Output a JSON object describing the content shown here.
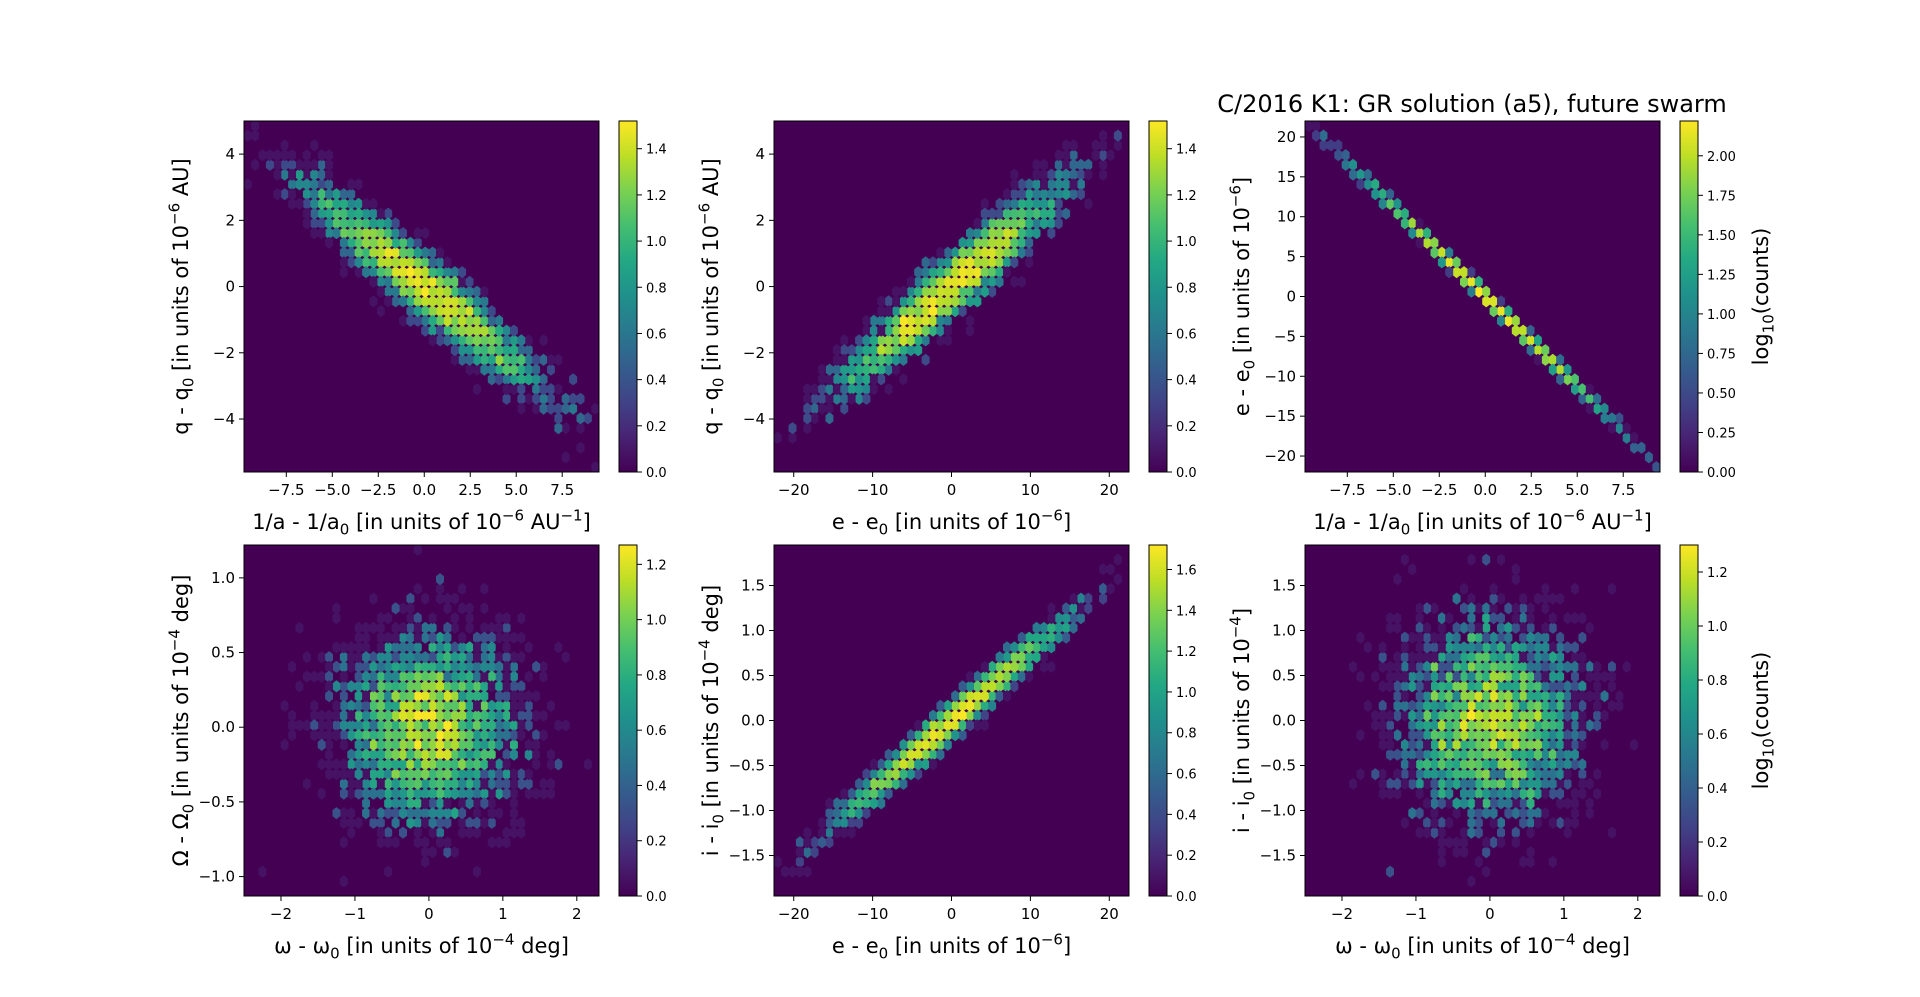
{
  "title": "C/2016 K1: GR solution (a5),  future swarm",
  "chart_data": [
    {
      "type": "heatmap",
      "xlabel": "1/a - 1/a$_0$ [in units of 10$^{-6}$ AU$^{-1}$]",
      "ylabel": "q - q$_0$ [in units of 10$^{-6}$ AU]",
      "xlim": [
        -9.8,
        9.5
      ],
      "ylim": [
        -5.6,
        5.0
      ],
      "xticks": [
        -7.5,
        -5.0,
        -2.5,
        0.0,
        2.5,
        5.0,
        7.5
      ],
      "xtick_labels": [
        "−7.5",
        "−5.0",
        "−2.5",
        "0.0",
        "2.5",
        "5.0",
        "7.5"
      ],
      "yticks": [
        -4,
        -2,
        0,
        2,
        4
      ],
      "ytick_labels": [
        "−4",
        "−2",
        "0",
        "2",
        "4"
      ],
      "colorbar": {
        "vmin": 0,
        "vmax": 1.52,
        "ticks": [
          0.0,
          0.2,
          0.4,
          0.6,
          0.8,
          1.0,
          1.2,
          1.4
        ],
        "tick_labels": [
          "0.0",
          "0.2",
          "0.4",
          "0.6",
          "0.8",
          "1.0",
          "1.2",
          "1.4"
        ],
        "label": ""
      },
      "distribution": {
        "cx": 0.0,
        "cy": 0.0,
        "sx": 3.2,
        "sy": 1.55,
        "rho": -0.95,
        "n": 3000
      }
    },
    {
      "type": "heatmap",
      "xlabel": "e - e$_0$ [in units of 10$^{-6}$]",
      "ylabel": "q - q$_0$ [in units of 10$^{-6}$ AU]",
      "xlim": [
        -22.5,
        22.5
      ],
      "ylim": [
        -5.6,
        5.0
      ],
      "xticks": [
        -20,
        -10,
        0,
        10,
        20
      ],
      "xtick_labels": [
        "−20",
        "−10",
        "0",
        "10",
        "20"
      ],
      "yticks": [
        -4,
        -2,
        0,
        2,
        4
      ],
      "ytick_labels": [
        "−4",
        "−2",
        "0",
        "2",
        "4"
      ],
      "colorbar": {
        "vmin": 0,
        "vmax": 1.52,
        "ticks": [
          0.0,
          0.2,
          0.4,
          0.6,
          0.8,
          1.0,
          1.2,
          1.4
        ],
        "tick_labels": [
          "0.0",
          "0.2",
          "0.4",
          "0.6",
          "0.8",
          "1.0",
          "1.2",
          "1.4"
        ],
        "label": ""
      },
      "distribution": {
        "cx": 0.0,
        "cy": 0.0,
        "sx": 7.0,
        "sy": 1.55,
        "rho": 0.95,
        "n": 3000
      }
    },
    {
      "type": "heatmap",
      "xlabel": "1/a - 1/a$_0$ [in units of 10$^{-6}$ AU$^{-1}$]",
      "ylabel": "e - e$_0$ [in units of 10$^{-6}$]",
      "xlim": [
        -9.8,
        9.5
      ],
      "ylim": [
        -22,
        22
      ],
      "xticks": [
        -7.5,
        -5.0,
        -2.5,
        0.0,
        2.5,
        5.0,
        7.5
      ],
      "xtick_labels": [
        "−7.5",
        "−5.0",
        "−2.5",
        "0.0",
        "2.5",
        "5.0",
        "7.5"
      ],
      "yticks": [
        -20,
        -15,
        -10,
        -5,
        0,
        5,
        10,
        15,
        20
      ],
      "ytick_labels": [
        "−20",
        "−15",
        "−10",
        "−5",
        "0",
        "5",
        "10",
        "15",
        "20"
      ],
      "colorbar": {
        "vmin": 0,
        "vmax": 2.22,
        "ticks": [
          0.0,
          0.25,
          0.5,
          0.75,
          1.0,
          1.25,
          1.5,
          1.75,
          2.0
        ],
        "tick_labels": [
          "0.00",
          "0.25",
          "0.50",
          "0.75",
          "1.00",
          "1.25",
          "1.50",
          "1.75",
          "2.00"
        ],
        "label": "log$_{10}$(counts)"
      },
      "distribution": {
        "cx": 0.0,
        "cy": 0.0,
        "sx": 3.2,
        "sy": 7.2,
        "rho": -0.9995,
        "n": 3000
      }
    },
    {
      "type": "heatmap",
      "xlabel": "ω - ω$_0$ [in units of 10$^{-4}$ deg]",
      "ylabel": "Ω - Ω$_0$ [in units of 10$^{-4}$ deg]",
      "xlim": [
        -2.5,
        2.3
      ],
      "ylim": [
        -1.13,
        1.22
      ],
      "xticks": [
        -2,
        -1,
        0,
        1,
        2
      ],
      "xtick_labels": [
        "−2",
        "−1",
        "0",
        "1",
        "2"
      ],
      "yticks": [
        -1.0,
        -0.5,
        0.0,
        0.5,
        1.0
      ],
      "ytick_labels": [
        "−1.0",
        "−0.5",
        "0.0",
        "0.5",
        "1.0"
      ],
      "colorbar": {
        "vmin": 0,
        "vmax": 1.27,
        "ticks": [
          0.0,
          0.2,
          0.4,
          0.6,
          0.8,
          1.0,
          1.2
        ],
        "tick_labels": [
          "0.0",
          "0.2",
          "0.4",
          "0.6",
          "0.8",
          "1.0",
          "1.2"
        ],
        "label": ""
      },
      "distribution": {
        "cx": 0.0,
        "cy": 0.0,
        "sx": 0.6,
        "sy": 0.32,
        "rho": 0.0,
        "n": 3000
      }
    },
    {
      "type": "heatmap",
      "xlabel": "e - e$_0$ [in units of 10$^{-6}$]",
      "ylabel": "i - i$_0$ [in units of 10$^{-4}$ deg]",
      "xlim": [
        -22.5,
        22.5
      ],
      "ylim": [
        -1.95,
        1.95
      ],
      "xticks": [
        -20,
        -10,
        0,
        10,
        20
      ],
      "xtick_labels": [
        "−20",
        "−10",
        "0",
        "10",
        "20"
      ],
      "yticks": [
        -1.5,
        -1.0,
        -0.5,
        0.0,
        0.5,
        1.0,
        1.5
      ],
      "ytick_labels": [
        "−1.5",
        "−1.0",
        "−0.5",
        "0.0",
        "0.5",
        "1.0",
        "1.5"
      ],
      "colorbar": {
        "vmin": 0,
        "vmax": 1.72,
        "ticks": [
          0.0,
          0.2,
          0.4,
          0.6,
          0.8,
          1.0,
          1.2,
          1.4,
          1.6
        ],
        "tick_labels": [
          "0.0",
          "0.2",
          "0.4",
          "0.6",
          "0.8",
          "1.0",
          "1.2",
          "1.4",
          "1.6"
        ],
        "label": ""
      },
      "distribution": {
        "cx": 0.0,
        "cy": 0.0,
        "sx": 7.0,
        "sy": 0.55,
        "rho": 0.985,
        "n": 3000
      }
    },
    {
      "type": "heatmap",
      "xlabel": "ω - ω$_0$ [in units of 10$^{-4}$ deg]",
      "ylabel": "i - i$_0$ [in units of 10$^{-4}$]",
      "xlim": [
        -2.5,
        2.3
      ],
      "ylim": [
        -1.95,
        1.95
      ],
      "xticks": [
        -2,
        -1,
        0,
        1,
        2
      ],
      "xtick_labels": [
        "−2",
        "−1",
        "0",
        "1",
        "2"
      ],
      "yticks": [
        -1.5,
        -1.0,
        -0.5,
        0.0,
        0.5,
        1.0,
        1.5
      ],
      "ytick_labels": [
        "−1.5",
        "−1.0",
        "−0.5",
        "0.0",
        "0.5",
        "1.0",
        "1.5"
      ],
      "colorbar": {
        "vmin": 0,
        "vmax": 1.3,
        "ticks": [
          0.0,
          0.2,
          0.4,
          0.6,
          0.8,
          1.0,
          1.2
        ],
        "tick_labels": [
          "0.0",
          "0.2",
          "0.4",
          "0.6",
          "0.8",
          "1.0",
          "1.2"
        ],
        "label": "log$_{10}$(counts)"
      },
      "distribution": {
        "cx": 0.0,
        "cy": 0.0,
        "sx": 0.6,
        "sy": 0.55,
        "rho": 0.0,
        "n": 3000
      }
    }
  ]
}
